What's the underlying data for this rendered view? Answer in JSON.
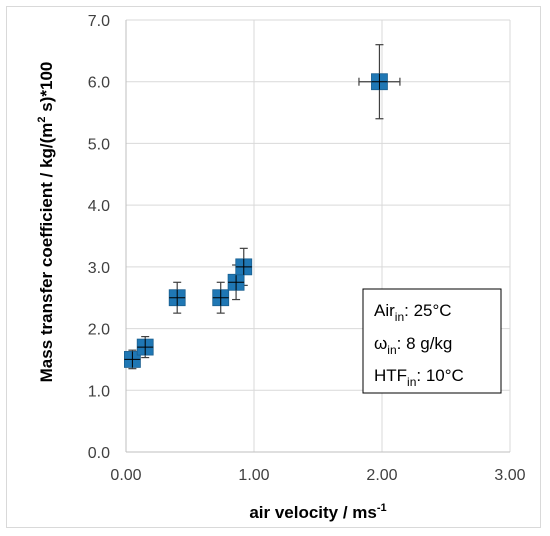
{
  "chart_data": {
    "type": "scatter",
    "title": "",
    "xlabel": "air velocity / ms",
    "xlabel_sup": "-1",
    "ylabel": "Mass  transfer coefficient / kg/(m",
    "ylabel_sup": "2",
    "ylabel_end": " s)*100",
    "xlim": [
      0,
      3
    ],
    "ylim": [
      0,
      7
    ],
    "x_ticks": [
      "0.00",
      "1.00",
      "2.00",
      "3.00"
    ],
    "y_ticks": [
      "0.0",
      "1.0",
      "2.0",
      "3.0",
      "4.0",
      "5.0",
      "6.0",
      "7.0"
    ],
    "x_tick_values": [
      0,
      1,
      2,
      3
    ],
    "y_tick_values": [
      0,
      1,
      2,
      3,
      4,
      5,
      6,
      7
    ],
    "grid": true,
    "marker_color": "#1f77b4",
    "errorbar_color": "#404040",
    "points": [
      {
        "x": 0.05,
        "y": 1.5,
        "yerr": 0.15,
        "xerr": 0.0
      },
      {
        "x": 0.15,
        "y": 1.7,
        "yerr": 0.17,
        "xerr": 0.0
      },
      {
        "x": 0.4,
        "y": 2.5,
        "yerr": 0.25,
        "xerr": 0.0
      },
      {
        "x": 0.74,
        "y": 2.5,
        "yerr": 0.25,
        "xerr": 0.0
      },
      {
        "x": 0.86,
        "y": 2.75,
        "yerr": 0.28,
        "xerr": 0.03
      },
      {
        "x": 0.92,
        "y": 3.0,
        "yerr": 0.3,
        "xerr": 0.04
      },
      {
        "x": 1.98,
        "y": 6.0,
        "yerr": 0.6,
        "xerr": 0.16
      }
    ],
    "legend_box": {
      "line1_main": "Air",
      "line1_sub": "in",
      "line1_rest": ": 25°C",
      "line2_main": "ω",
      "line2_sub": "in",
      "line2_rest": ": 8 g/kg",
      "line3_main": "HTF",
      "line3_sub": "in",
      "line3_rest": ": 10°C"
    }
  }
}
